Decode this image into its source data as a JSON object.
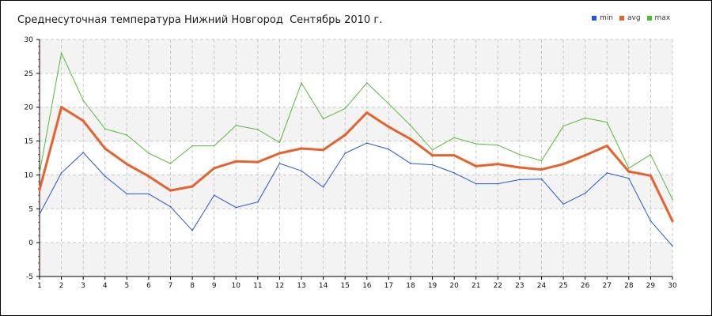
{
  "chart_data": {
    "type": "line",
    "title": "Среднесуточная температура Нижний Новгород  Сентябрь 2010 г.",
    "x": [
      1,
      2,
      3,
      4,
      5,
      6,
      7,
      8,
      9,
      10,
      11,
      12,
      13,
      14,
      15,
      16,
      17,
      18,
      19,
      20,
      21,
      22,
      23,
      24,
      25,
      26,
      27,
      28,
      29,
      30
    ],
    "series": [
      {
        "name": "min",
        "color": "#2255dd",
        "values": [
          4.2,
          10.3,
          13.3,
          9.8,
          7.2,
          7.2,
          5.3,
          1.8,
          7.0,
          5.2,
          6.0,
          11.7,
          10.6,
          8.2,
          13.2,
          14.7,
          13.8,
          11.7,
          11.5,
          10.3,
          8.7,
          8.7,
          9.3,
          9.4,
          5.7,
          7.3,
          10.3,
          9.5,
          3.2,
          -0.5
        ]
      },
      {
        "name": "avg",
        "color": "#e8612c",
        "values": [
          7.8,
          20.0,
          18.0,
          13.9,
          11.6,
          9.8,
          7.7,
          8.3,
          11.0,
          12.0,
          11.9,
          13.2,
          13.9,
          13.7,
          15.9,
          19.2,
          17.1,
          15.3,
          12.9,
          12.9,
          11.3,
          11.6,
          11.1,
          10.8,
          11.6,
          12.9,
          14.3,
          10.5,
          9.9,
          3.2
        ]
      },
      {
        "name": "max",
        "color": "#55bb33",
        "values": [
          10.3,
          28.0,
          21.0,
          16.8,
          15.9,
          13.2,
          11.7,
          14.3,
          14.3,
          17.3,
          16.7,
          14.8,
          23.6,
          18.3,
          19.8,
          23.6,
          20.5,
          17.3,
          13.7,
          15.5,
          14.6,
          14.4,
          13.0,
          12.1,
          17.2,
          18.4,
          17.8,
          11.0,
          13.0,
          6.4
        ]
      }
    ],
    "ylim": [
      -5,
      30
    ],
    "yticks": [
      "-5",
      "0",
      "5",
      "10",
      "15",
      "20",
      "25",
      "30"
    ],
    "xticks": [
      "1",
      "2",
      "3",
      "4",
      "5",
      "6",
      "7",
      "8",
      "9",
      "10",
      "11",
      "12",
      "13",
      "14",
      "15",
      "16",
      "17",
      "18",
      "19",
      "20",
      "21",
      "22",
      "23",
      "24",
      "25",
      "26",
      "27",
      "28",
      "29",
      "30"
    ],
    "xlabel": "",
    "ylabel": "",
    "grid": true,
    "legend_position": "top-right"
  }
}
